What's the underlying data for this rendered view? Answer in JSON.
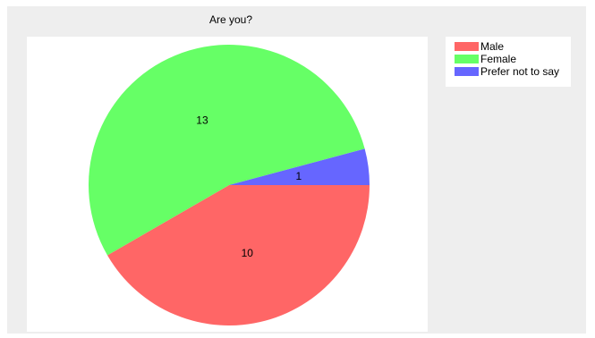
{
  "chart_data": {
    "type": "pie",
    "title": "Are you?",
    "categories": [
      "Male",
      "Female",
      "Prefer not to say"
    ],
    "values": [
      10,
      13,
      1
    ],
    "colors": [
      "#ff6666",
      "#66ff66",
      "#6666ff"
    ],
    "data_labels": [
      "10",
      "13",
      "1"
    ],
    "legend_position": "right-top"
  }
}
